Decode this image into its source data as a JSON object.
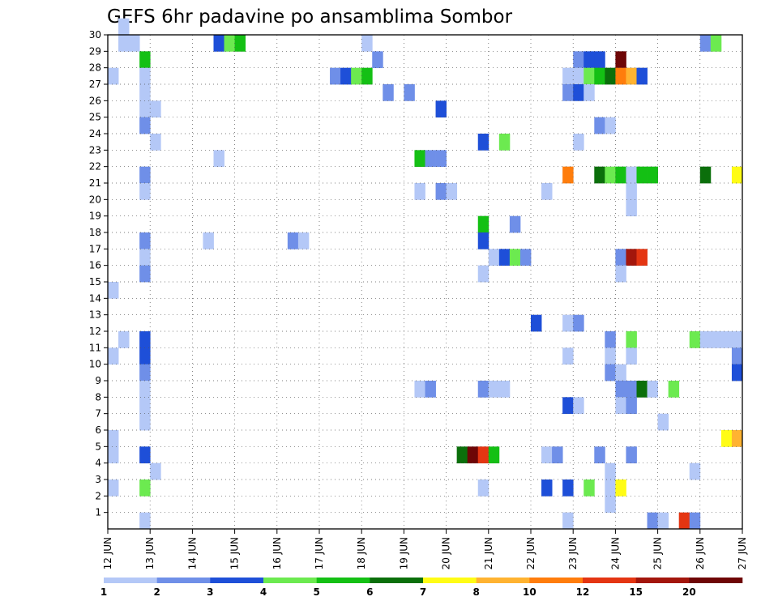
{
  "chart_data": {
    "type": "heatmap",
    "title": "GEFS 6hr padavine po ansamblima Sombor",
    "xlabel": "",
    "ylabel": "",
    "x_ticks": [
      "12 JUN",
      "13 JUN",
      "14 JUN",
      "15 JUN",
      "16 JUN",
      "17 JUN",
      "18 JUN",
      "19 JUN",
      "20 JUN",
      "21 JUN",
      "22 JUN",
      "23 JUN",
      "24 JUN",
      "25 JUN",
      "26 JUN",
      "27 JUN"
    ],
    "xlim": [
      0,
      15
    ],
    "y_ticks": [
      1,
      2,
      3,
      4,
      5,
      6,
      7,
      8,
      9,
      10,
      11,
      12,
      13,
      14,
      15,
      16,
      17,
      18,
      19,
      20,
      21,
      22,
      23,
      24,
      25,
      26,
      27,
      28,
      29,
      30
    ],
    "ylim": [
      0,
      30
    ],
    "grid": true,
    "colorbar": {
      "position": "bottom",
      "labels": [
        "1",
        "2",
        "3",
        "4",
        "5",
        "6",
        "7",
        "8",
        "10",
        "12",
        "15",
        "20"
      ],
      "colors": [
        "#b4c8f7",
        "#6f8fe8",
        "#1e4fd8",
        "#6cea50",
        "#14c014",
        "#0b6f0b",
        "#fffc15",
        "#ffb331",
        "#ff7d0c",
        "#e43512",
        "#a3160c",
        "#6e0606"
      ]
    },
    "cells": [
      [
        0.25,
        30,
        0
      ],
      [
        2.5,
        29,
        2
      ],
      [
        2.75,
        29,
        3
      ],
      [
        3.0,
        29,
        4
      ],
      [
        5.25,
        27,
        1
      ],
      [
        5.5,
        27,
        2
      ],
      [
        5.75,
        27,
        3
      ],
      [
        6.0,
        27,
        4
      ],
      [
        6.25,
        28,
        1
      ],
      [
        6.5,
        26,
        1
      ],
      [
        7.0,
        26,
        1
      ],
      [
        0.25,
        29,
        0
      ],
      [
        0.5,
        29,
        0
      ],
      [
        6.0,
        29,
        0
      ],
      [
        14.0,
        29,
        1
      ],
      [
        14.25,
        29,
        3
      ],
      [
        0.75,
        28,
        4
      ],
      [
        11.0,
        28,
        1
      ],
      [
        11.25,
        28,
        2
      ],
      [
        11.5,
        28,
        2
      ],
      [
        12.0,
        28,
        11
      ],
      [
        0.0,
        27,
        0
      ],
      [
        0.75,
        27,
        0
      ],
      [
        10.75,
        27,
        0
      ],
      [
        11.0,
        27,
        0
      ],
      [
        11.25,
        27,
        3
      ],
      [
        11.5,
        27,
        4
      ],
      [
        11.75,
        27,
        5
      ],
      [
        12.0,
        27,
        8
      ],
      [
        12.25,
        27,
        7
      ],
      [
        12.5,
        27,
        2
      ],
      [
        0.75,
        26,
        0
      ],
      [
        10.75,
        26,
        1
      ],
      [
        11.0,
        26,
        2
      ],
      [
        11.25,
        26,
        0
      ],
      [
        0.75,
        25,
        0
      ],
      [
        1.0,
        25,
        0
      ],
      [
        7.75,
        25,
        2
      ],
      [
        0.75,
        24,
        1
      ],
      [
        11.5,
        24,
        1
      ],
      [
        11.75,
        24,
        0
      ],
      [
        1.0,
        23,
        0
      ],
      [
        8.75,
        23,
        2
      ],
      [
        9.25,
        23,
        3
      ],
      [
        11.0,
        23,
        0
      ],
      [
        2.5,
        22,
        0
      ],
      [
        7.25,
        22,
        4
      ],
      [
        7.5,
        22,
        1
      ],
      [
        7.75,
        22,
        1
      ],
      [
        0.75,
        21,
        1
      ],
      [
        10.75,
        21,
        8
      ],
      [
        11.5,
        21,
        5
      ],
      [
        11.75,
        21,
        3
      ],
      [
        12.0,
        21,
        4
      ],
      [
        12.25,
        21,
        0
      ],
      [
        12.5,
        21,
        4
      ],
      [
        12.75,
        21,
        4
      ],
      [
        14.0,
        21,
        5
      ],
      [
        14.75,
        21,
        6
      ],
      [
        0.75,
        20,
        0
      ],
      [
        7.25,
        20,
        0
      ],
      [
        7.75,
        20,
        1
      ],
      [
        8.0,
        20,
        0
      ],
      [
        10.25,
        20,
        0
      ],
      [
        12.25,
        20,
        0
      ],
      [
        12.25,
        19,
        0
      ],
      [
        8.75,
        18,
        4
      ],
      [
        9.5,
        18,
        1
      ],
      [
        2.25,
        17,
        0
      ],
      [
        4.25,
        17,
        1
      ],
      [
        4.5,
        17,
        0
      ],
      [
        0.75,
        17,
        1
      ],
      [
        8.75,
        17,
        2
      ],
      [
        0.75,
        16,
        0
      ],
      [
        9.0,
        16,
        0
      ],
      [
        9.25,
        16,
        2
      ],
      [
        9.5,
        16,
        3
      ],
      [
        9.75,
        16,
        1
      ],
      [
        12.0,
        16,
        1
      ],
      [
        12.25,
        16,
        10
      ],
      [
        12.5,
        16,
        9
      ],
      [
        0.75,
        15,
        1
      ],
      [
        12.0,
        15,
        0
      ],
      [
        8.75,
        15,
        0
      ],
      [
        0.0,
        14,
        0
      ],
      [
        10.0,
        12,
        2
      ],
      [
        10.75,
        12,
        0
      ],
      [
        11.0,
        12,
        1
      ],
      [
        0.25,
        11,
        0
      ],
      [
        0.75,
        11,
        2
      ],
      [
        11.75,
        11,
        1
      ],
      [
        12.25,
        11,
        3
      ],
      [
        13.75,
        11,
        3
      ],
      [
        14.0,
        11,
        0
      ],
      [
        14.25,
        11,
        0
      ],
      [
        14.5,
        11,
        0
      ],
      [
        14.75,
        11,
        0
      ],
      [
        0.0,
        10,
        0
      ],
      [
        0.75,
        10,
        2
      ],
      [
        10.75,
        10,
        0
      ],
      [
        11.75,
        10,
        0
      ],
      [
        12.25,
        10,
        0
      ],
      [
        14.75,
        10,
        1
      ],
      [
        0.75,
        9,
        1
      ],
      [
        11.75,
        9,
        1
      ],
      [
        12.0,
        9,
        0
      ],
      [
        14.75,
        9,
        2
      ],
      [
        0.75,
        8,
        0
      ],
      [
        7.25,
        8,
        0
      ],
      [
        7.5,
        8,
        1
      ],
      [
        8.75,
        8,
        1
      ],
      [
        9.0,
        8,
        0
      ],
      [
        9.25,
        8,
        0
      ],
      [
        12.0,
        8,
        1
      ],
      [
        12.25,
        8,
        1
      ],
      [
        12.5,
        8,
        5
      ],
      [
        12.75,
        8,
        0
      ],
      [
        13.25,
        8,
        3
      ],
      [
        0.75,
        7,
        0
      ],
      [
        10.75,
        7,
        2
      ],
      [
        11.0,
        7,
        0
      ],
      [
        12.0,
        7,
        0
      ],
      [
        12.25,
        7,
        1
      ],
      [
        0.75,
        6,
        0
      ],
      [
        13.0,
        6,
        0
      ],
      [
        0.0,
        5,
        0
      ],
      [
        14.5,
        5,
        6
      ],
      [
        14.75,
        5,
        7
      ],
      [
        0.0,
        4,
        0
      ],
      [
        0.75,
        4,
        2
      ],
      [
        8.25,
        4,
        5
      ],
      [
        8.5,
        4,
        11
      ],
      [
        8.75,
        4,
        9
      ],
      [
        9.0,
        4,
        4
      ],
      [
        10.25,
        4,
        0
      ],
      [
        10.5,
        4,
        1
      ],
      [
        11.5,
        4,
        1
      ],
      [
        12.25,
        4,
        1
      ],
      [
        1.0,
        3,
        0
      ],
      [
        11.75,
        3,
        0
      ],
      [
        13.75,
        3,
        0
      ],
      [
        0.0,
        2,
        0
      ],
      [
        0.75,
        2,
        3
      ],
      [
        8.75,
        2,
        0
      ],
      [
        10.25,
        2,
        2
      ],
      [
        10.75,
        2,
        2
      ],
      [
        11.25,
        2,
        3
      ],
      [
        11.75,
        2,
        0
      ],
      [
        12.0,
        2,
        6
      ],
      [
        11.75,
        1,
        0
      ],
      [
        0.75,
        0,
        0
      ],
      [
        10.75,
        0,
        0
      ],
      [
        12.75,
        0,
        1
      ],
      [
        13.0,
        0,
        0
      ],
      [
        13.5,
        0,
        9
      ],
      [
        13.75,
        0,
        1
      ]
    ]
  }
}
